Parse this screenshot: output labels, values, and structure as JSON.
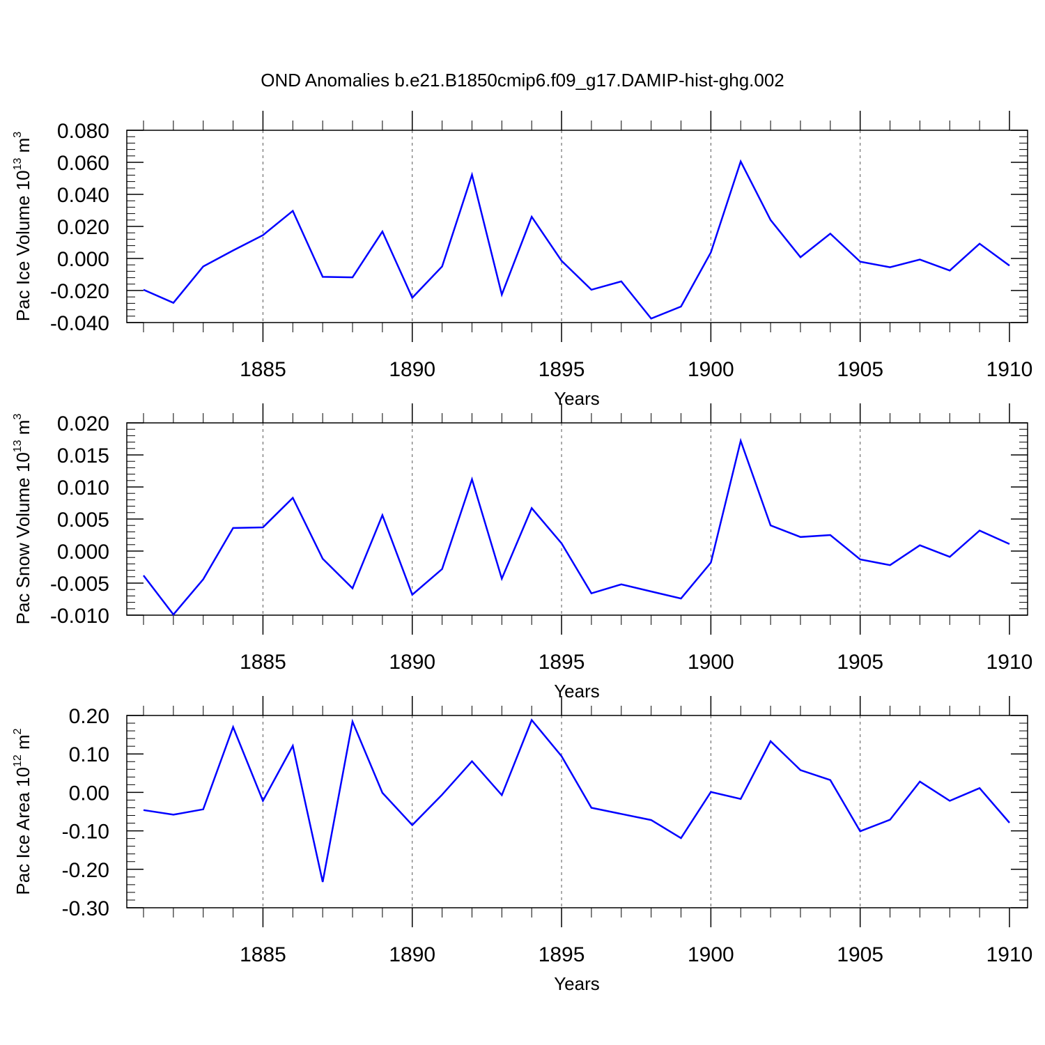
{
  "figure": {
    "title": "OND Anomalies b.e21.B1850cmip6.f09_g17.DAMIP-hist-ghg.002",
    "line_color": "#0000ff"
  },
  "chart_data": [
    {
      "type": "line",
      "ylabel_main": "Pac Ice Volume 10",
      "ylabel_exp": "13",
      "ylabel_unit": "m",
      "ylabel_unit_exp": "3",
      "xlabel": "Years",
      "xlim": [
        1881,
        1910
      ],
      "ylim": [
        -0.04,
        0.08
      ],
      "x_ticks": [
        1885,
        1890,
        1895,
        1900,
        1905,
        1910
      ],
      "x_tick_labels": [
        "1885",
        "1890",
        "1895",
        "1900",
        "1905",
        "1910"
      ],
      "y_ticks": [
        -0.04,
        -0.02,
        0.0,
        0.02,
        0.04,
        0.06,
        0.08
      ],
      "y_tick_labels": [
        "-0.040",
        "-0.020",
        "0.000",
        "0.020",
        "0.040",
        "0.060",
        "0.080"
      ],
      "y_minor_step": 0.004,
      "grid": "vertical dashed at major x ticks",
      "x": [
        1881,
        1882,
        1883,
        1884,
        1885,
        1886,
        1887,
        1888,
        1889,
        1890,
        1891,
        1892,
        1893,
        1894,
        1895,
        1896,
        1897,
        1898,
        1899,
        1900,
        1901,
        1902,
        1903,
        1904,
        1905,
        1906,
        1907,
        1908,
        1909,
        1910
      ],
      "values": [
        -0.0195,
        -0.0277,
        -0.005,
        0.005,
        0.0145,
        0.0297,
        -0.0115,
        -0.0118,
        0.0168,
        -0.0245,
        -0.005,
        0.0522,
        -0.0225,
        0.026,
        -0.0015,
        -0.0195,
        -0.0143,
        -0.0375,
        -0.03,
        0.0038,
        0.0605,
        0.024,
        0.0008,
        0.0155,
        -0.002,
        -0.0055,
        -0.0007,
        -0.0075,
        0.0092,
        -0.0045
      ]
    },
    {
      "type": "line",
      "ylabel_main": "Pac Snow Volume 10",
      "ylabel_exp": "13",
      "ylabel_unit": "m",
      "ylabel_unit_exp": "3",
      "xlabel": "Years",
      "xlim": [
        1881,
        1910
      ],
      "ylim": [
        -0.01,
        0.02
      ],
      "x_ticks": [
        1885,
        1890,
        1895,
        1900,
        1905,
        1910
      ],
      "x_tick_labels": [
        "1885",
        "1890",
        "1895",
        "1900",
        "1905",
        "1910"
      ],
      "y_ticks": [
        -0.01,
        -0.005,
        0.0,
        0.005,
        0.01,
        0.015,
        0.02
      ],
      "y_tick_labels": [
        "-0.010",
        "-0.005",
        "0.000",
        "0.005",
        "0.010",
        "0.015",
        "0.020"
      ],
      "y_minor_step": 0.001,
      "grid": "vertical dashed at major x ticks",
      "x": [
        1881,
        1882,
        1883,
        1884,
        1885,
        1886,
        1887,
        1888,
        1889,
        1890,
        1891,
        1892,
        1893,
        1894,
        1895,
        1896,
        1897,
        1898,
        1899,
        1900,
        1901,
        1902,
        1903,
        1904,
        1905,
        1906,
        1907,
        1908,
        1909,
        1910
      ],
      "values": [
        -0.0038,
        -0.0099,
        -0.0044,
        0.0036,
        0.0037,
        0.0083,
        -0.0012,
        -0.0058,
        0.0056,
        -0.0068,
        -0.0028,
        0.0112,
        -0.0043,
        0.0067,
        0.0012,
        -0.0066,
        -0.0052,
        -0.0063,
        -0.0074,
        -0.0018,
        0.0172,
        0.004,
        0.0022,
        0.0025,
        -0.0013,
        -0.0022,
        0.0009,
        -0.0009,
        0.0032,
        0.0011
      ]
    },
    {
      "type": "line",
      "ylabel_main": "Pac Ice Area 10",
      "ylabel_exp": "12",
      "ylabel_unit": "m",
      "ylabel_unit_exp": "2",
      "xlabel": "Years",
      "xlim": [
        1881,
        1910
      ],
      "ylim": [
        -0.3,
        0.2
      ],
      "x_ticks": [
        1885,
        1890,
        1895,
        1900,
        1905,
        1910
      ],
      "x_tick_labels": [
        "1885",
        "1890",
        "1895",
        "1900",
        "1905",
        "1910"
      ],
      "y_ticks": [
        -0.3,
        -0.2,
        -0.1,
        0.0,
        0.1,
        0.2
      ],
      "y_tick_labels": [
        "-0.30",
        "-0.20",
        "-0.10",
        "0.00",
        "0.10",
        "0.20"
      ],
      "y_minor_step": 0.02,
      "grid": "vertical dashed at major x ticks",
      "x": [
        1881,
        1882,
        1883,
        1884,
        1885,
        1886,
        1887,
        1888,
        1889,
        1890,
        1891,
        1892,
        1893,
        1894,
        1895,
        1896,
        1897,
        1898,
        1899,
        1900,
        1901,
        1902,
        1903,
        1904,
        1905,
        1906,
        1907,
        1908,
        1909,
        1910
      ],
      "values": [
        -0.046,
        -0.058,
        -0.044,
        0.17,
        -0.022,
        0.121,
        -0.233,
        0.184,
        -0.001,
        -0.085,
        -0.006,
        0.081,
        -0.007,
        0.188,
        0.094,
        -0.04,
        -0.056,
        -0.072,
        -0.119,
        0.001,
        -0.017,
        0.133,
        0.058,
        0.032,
        -0.101,
        -0.071,
        0.028,
        -0.022,
        0.011,
        -0.079
      ]
    }
  ]
}
